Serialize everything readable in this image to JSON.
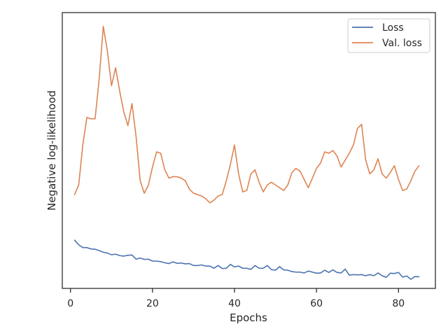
{
  "chart_data": {
    "type": "line",
    "xlabel": "Epochs",
    "ylabel": "Negative log-likelihood",
    "x_ticks": [
      0,
      20,
      40,
      60,
      80
    ],
    "xlim": [
      -2,
      89
    ],
    "ylim": [
      0,
      100
    ],
    "y_tick_labels_shown": false,
    "grid": false,
    "legend_position": "top-right",
    "x": [
      1,
      2,
      3,
      4,
      5,
      6,
      7,
      8,
      9,
      10,
      11,
      12,
      13,
      14,
      15,
      16,
      17,
      18,
      19,
      20,
      21,
      22,
      23,
      24,
      25,
      26,
      27,
      28,
      29,
      30,
      31,
      32,
      33,
      34,
      35,
      36,
      37,
      38,
      39,
      40,
      41,
      42,
      43,
      44,
      45,
      46,
      47,
      48,
      49,
      50,
      51,
      52,
      53,
      54,
      55,
      56,
      57,
      58,
      59,
      60,
      61,
      62,
      63,
      64,
      65,
      66,
      67,
      68,
      69,
      70,
      71,
      72,
      73,
      74,
      75,
      76,
      77,
      78,
      79,
      80,
      81,
      82,
      83,
      84,
      85
    ],
    "series": [
      {
        "name": "Loss",
        "color": "#4c72b0",
        "values": [
          17.5,
          15.8,
          14.8,
          14.8,
          14.3,
          14.2,
          13.7,
          13.1,
          12.8,
          12.2,
          12.4,
          11.9,
          11.7,
          12.0,
          12.1,
          10.6,
          11.0,
          10.5,
          10.6,
          9.9,
          9.9,
          9.7,
          9.3,
          9.0,
          9.6,
          9.1,
          9.2,
          8.9,
          9.0,
          8.3,
          8.3,
          8.5,
          8.1,
          8.1,
          7.3,
          8.3,
          7.2,
          7.3,
          8.7,
          7.8,
          8.1,
          7.3,
          7.3,
          6.9,
          8.3,
          7.3,
          7.3,
          8.3,
          6.8,
          6.6,
          7.9,
          6.7,
          6.6,
          6.1,
          5.9,
          5.9,
          5.6,
          6.3,
          5.9,
          5.5,
          5.6,
          6.6,
          5.8,
          6.7,
          5.8,
          5.6,
          7.0,
          4.8,
          5.0,
          4.9,
          5.0,
          4.6,
          5.0,
          4.6,
          5.6,
          4.6,
          4.0,
          5.5,
          5.4,
          5.8,
          4.1,
          4.5,
          3.3,
          4.3,
          4.2
        ]
      },
      {
        "name": "Val. loss",
        "color": "#dd8452",
        "values": [
          34.0,
          37.5,
          52.0,
          62.0,
          61.5,
          61.5,
          76.0,
          95.0,
          86.0,
          73.5,
          80.0,
          71.5,
          64.0,
          59.0,
          67.0,
          55.0,
          39.0,
          34.5,
          37.5,
          44.0,
          49.5,
          49.0,
          43.0,
          40.0,
          40.5,
          40.5,
          40.0,
          39.0,
          36.0,
          34.5,
          34.0,
          33.5,
          32.5,
          31.0,
          32.0,
          33.5,
          34.0,
          39.0,
          45.0,
          52.0,
          41.5,
          35.0,
          35.5,
          41.5,
          43.0,
          38.5,
          35.0,
          37.5,
          38.5,
          37.5,
          36.5,
          35.5,
          37.5,
          42.0,
          43.5,
          42.5,
          39.5,
          36.5,
          40.0,
          43.5,
          45.5,
          49.5,
          49.0,
          50.0,
          48.0,
          44.0,
          46.5,
          49.0,
          52.0,
          58.0,
          59.5,
          46.5,
          41.5,
          43.0,
          47.0,
          41.5,
          40.0,
          42.0,
          44.5,
          39.5,
          35.5,
          36.0,
          39.0,
          42.5,
          44.5
        ]
      }
    ]
  }
}
